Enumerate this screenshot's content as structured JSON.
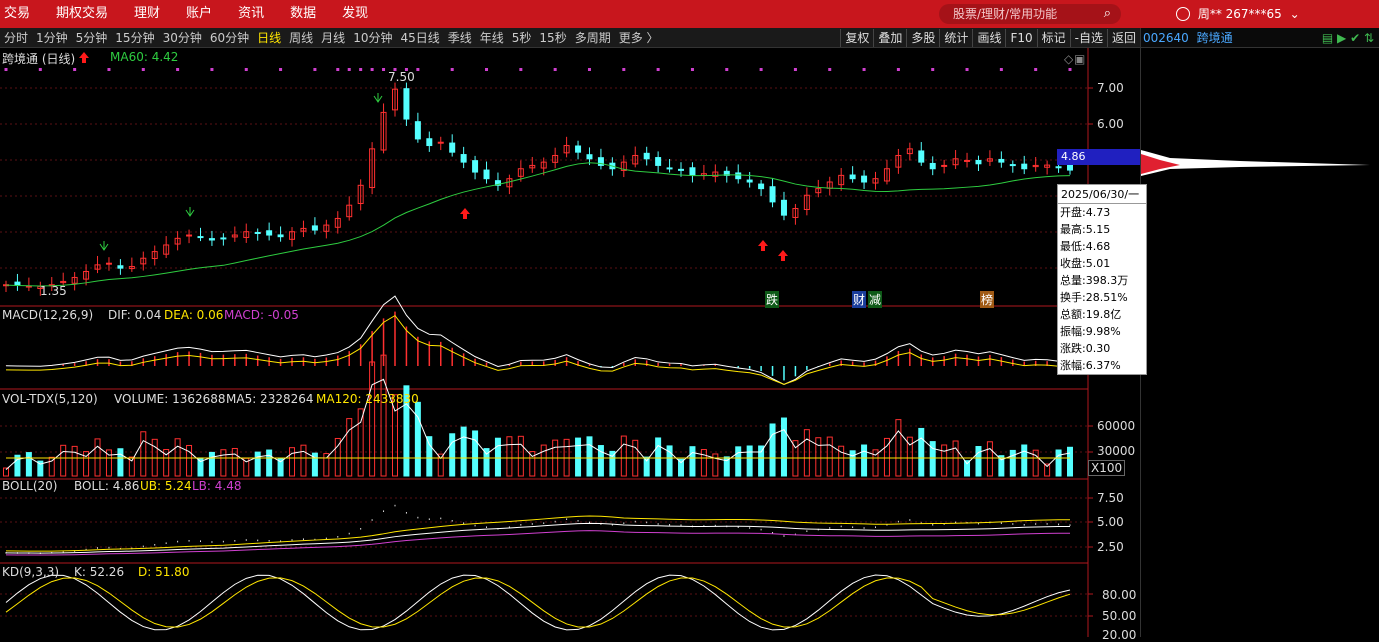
{
  "topbar": {
    "menu": [
      "交易",
      "期权交易",
      "理财",
      "账户",
      "资讯",
      "数据",
      "发现"
    ],
    "search_placeholder": "股票/理财/常用功能",
    "user": "周**  267***65"
  },
  "toolbar": {
    "periods": [
      "分时",
      "1分钟",
      "5分钟",
      "15分钟",
      "30分钟",
      "60分钟",
      "日线",
      "周线",
      "月线",
      "10分钟",
      "45日线",
      "季线",
      "年线",
      "5秒",
      "15秒",
      "多周期",
      "更多 〉"
    ],
    "active_period": "日线",
    "tools": [
      "复权",
      "叠加",
      "多股",
      "统计",
      "画线",
      "F10",
      "标记",
      "-自选",
      "返回"
    ]
  },
  "right_panel": {
    "code": "002640",
    "name": "跨境通"
  },
  "main_panel": {
    "title": "跨境通 (日线)",
    "ma_label": "MA60: 4.42",
    "high_marker": "7.50",
    "low_marker": "1.35",
    "price_axis": [
      "7.00",
      "6.00",
      "4.86"
    ],
    "current_price": "4.86",
    "event_tags": [
      "跌",
      "财",
      "减",
      "榜"
    ]
  },
  "macd_panel": {
    "label": "MACD(12,26,9)",
    "dif": "DIF: 0.04",
    "dea": "DEA: 0.06",
    "macd": "MACD: -0.05"
  },
  "vol_panel": {
    "label": "VOL-TDX(5,120)",
    "volume": "VOLUME: 1362688",
    "ma5": "MA5: 2328264",
    "ma120": "MA120: 2433830",
    "axis": [
      "60000",
      "30000"
    ],
    "unit": "X100"
  },
  "boll_panel": {
    "label": "BOLL(20)",
    "boll": "BOLL: 4.86",
    "ub": "UB: 5.24",
    "lb": "LB: 4.48",
    "axis": [
      "7.50",
      "5.00",
      "2.50"
    ]
  },
  "kd_panel": {
    "label": "KD(9,3,3)",
    "k": "K: 52.26",
    "d": "D: 51.80",
    "axis": [
      "80.00",
      "50.00",
      "20.00"
    ]
  },
  "tooltip": {
    "date": "2025/06/30/一",
    "rows": [
      "开盘:4.73",
      "最高:5.15",
      "最低:4.68",
      "收盘:5.01",
      "总量:398.3万",
      "换手:28.51%",
      "总额:19.8亿",
      "振幅:9.98%",
      "涨跌:0.30",
      "涨幅:6.37%"
    ]
  },
  "chart_data": {
    "type": "candlestick",
    "close_series_approx": [
      1.4,
      1.38,
      1.36,
      1.35,
      1.4,
      1.5,
      1.62,
      1.8,
      2.0,
      2.05,
      1.9,
      1.95,
      2.2,
      2.4,
      2.6,
      2.8,
      2.9,
      2.85,
      2.75,
      2.8,
      2.9,
      3.0,
      2.95,
      2.9,
      2.85,
      3.0,
      3.1,
      3.05,
      3.2,
      3.4,
      3.8,
      4.4,
      5.5,
      6.6,
      7.3,
      6.4,
      5.8,
      5.6,
      5.7,
      5.4,
      5.1,
      4.8,
      4.6,
      4.4,
      4.6,
      4.9,
      5.0,
      5.1,
      5.3,
      5.6,
      5.4,
      5.2,
      5.0,
      4.9,
      5.1,
      5.3,
      5.2,
      5.0,
      4.9,
      4.85,
      4.7,
      4.75,
      4.8,
      4.7,
      4.6,
      4.5,
      4.3,
      3.9,
      3.5,
      3.7,
      4.1,
      4.3,
      4.5,
      4.7,
      4.6,
      4.5,
      4.6,
      4.9,
      5.3,
      5.5,
      5.1,
      4.9,
      5.0,
      5.2,
      5.15,
      5.05,
      5.2,
      5.1,
      5.0,
      4.9,
      5.0,
      5.01,
      4.95,
      4.86
    ],
    "ma60_last": 4.42,
    "high": 7.5,
    "low": 1.35,
    "ylim": [
      1.0,
      8.0
    ]
  }
}
